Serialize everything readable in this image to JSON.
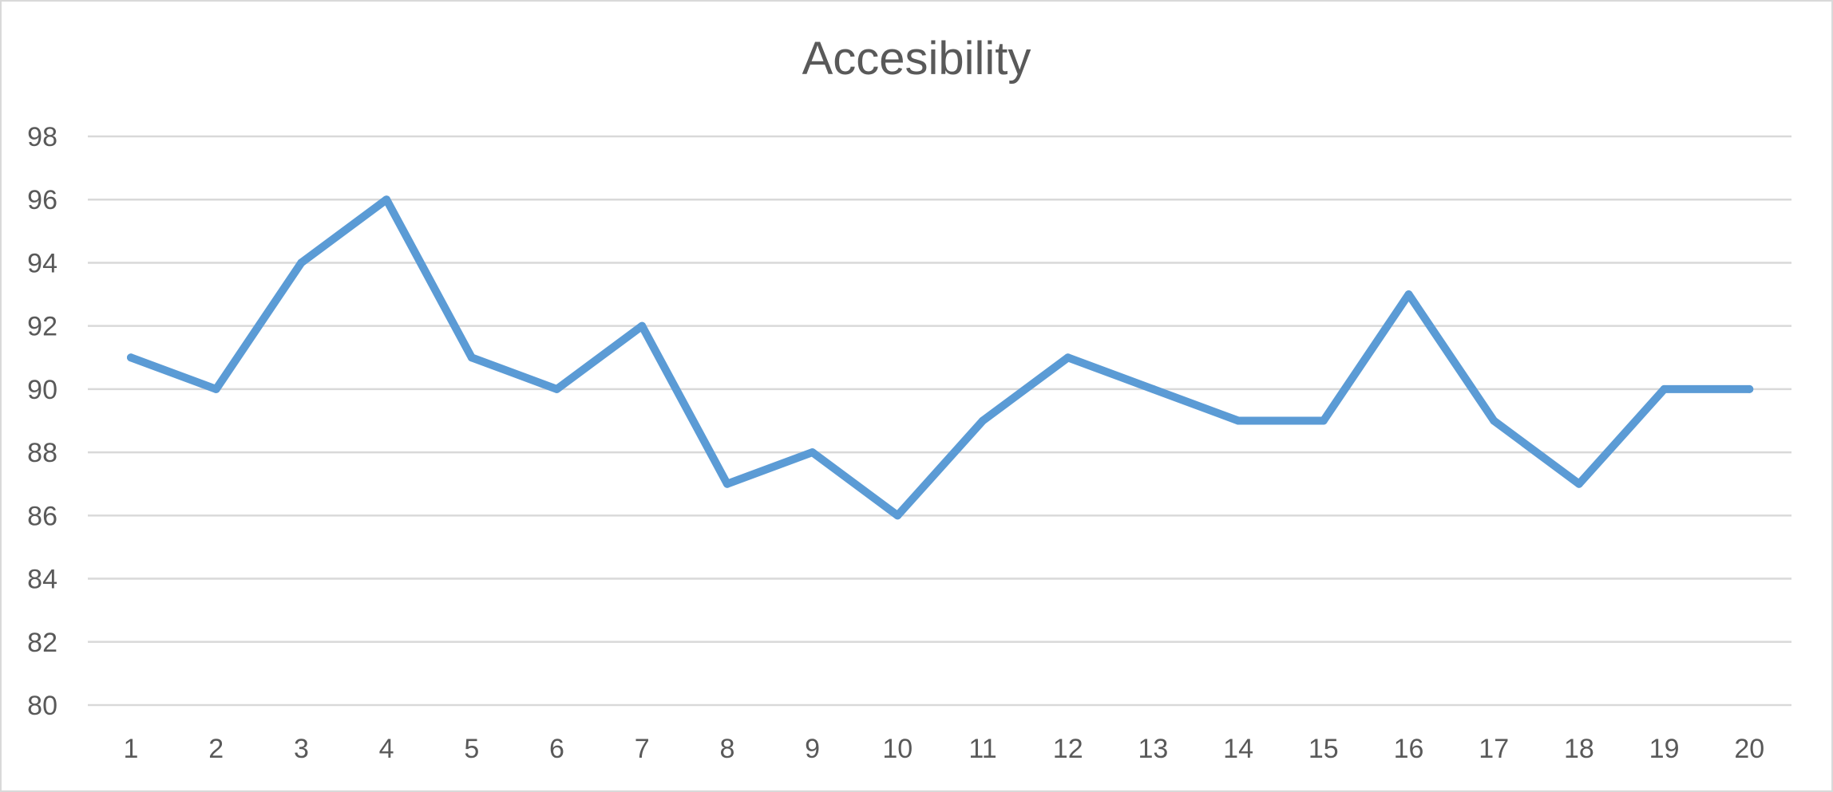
{
  "chart_data": {
    "type": "line",
    "title": "Accesibility",
    "xlabel": "",
    "ylabel": "",
    "categories": [
      "1",
      "2",
      "3",
      "4",
      "5",
      "6",
      "7",
      "8",
      "9",
      "10",
      "11",
      "12",
      "13",
      "14",
      "15",
      "16",
      "17",
      "18",
      "19",
      "20"
    ],
    "series": [
      {
        "values": [
          91,
          90,
          94,
          96,
          91,
          90,
          92,
          87,
          88,
          86,
          89,
          91,
          90,
          89,
          89,
          93,
          89,
          87,
          90,
          90
        ],
        "color": "#5b9bd5"
      }
    ],
    "ylim": [
      80,
      98
    ],
    "yticks": [
      80,
      82,
      84,
      86,
      88,
      90,
      92,
      94,
      96,
      98
    ],
    "grid": true,
    "legend": "none",
    "colors": {
      "gridline": "#d9d9d9",
      "text": "#595959",
      "line": "#5b9bd5"
    }
  }
}
